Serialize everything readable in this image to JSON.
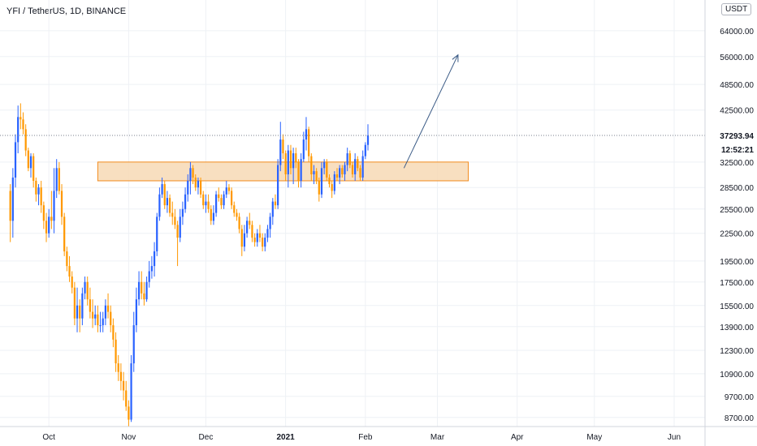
{
  "header": {
    "title": "YFI / TetherUS, 1D, BINANCE"
  },
  "price_scale": {
    "currency": "USDT"
  },
  "last_price": {
    "value": "37293.94",
    "countdown": "12:52:21"
  },
  "colors": {
    "up": "#2962ff",
    "down": "#ff9800",
    "zone_fill": "#f7d9b5",
    "zone_stroke": "#f28b1e",
    "arrow": "#3b5b86",
    "grid": "#eef1f5",
    "text": "#131722"
  },
  "chart_data": {
    "type": "candlestick",
    "title": "YFI / TetherUS, 1D, BINANCE",
    "y_scale": "log",
    "ylim": [
      8300,
      75000
    ],
    "y_ticks": [
      "8700.00",
      "9700.00",
      "10900.00",
      "12300.00",
      "13900.00",
      "15500.00",
      "17500.00",
      "19500.00",
      "22500.00",
      "25500.00",
      "28500.00",
      "32500.00",
      "42500.00",
      "48500.00",
      "56000.00",
      "64000.00"
    ],
    "x_ticks": [
      {
        "label": "Oct",
        "day": 15
      },
      {
        "label": "Nov",
        "day": 46
      },
      {
        "label": "Dec",
        "day": 76
      },
      {
        "label": "2021",
        "day": 107
      },
      {
        "label": "Feb",
        "day": 138
      },
      {
        "label": "Mar",
        "day": 166
      },
      {
        "label": "Apr",
        "day": 197
      },
      {
        "label": "May",
        "day": 227
      },
      {
        "label": "Jun",
        "day": 258
      }
    ],
    "x_range": [
      -4,
      270
    ],
    "candles": [
      [
        28000,
        21500,
        24000,
        29000
      ],
      [
        24000,
        22000,
        30000,
        31500
      ],
      [
        30000,
        28500,
        36000,
        37500
      ],
      [
        36000,
        34000,
        41000,
        43500
      ],
      [
        41000,
        38500,
        40500,
        44000
      ],
      [
        40500,
        37500,
        38500,
        42000
      ],
      [
        38500,
        33500,
        34500,
        39500
      ],
      [
        34500,
        31000,
        31500,
        35000
      ],
      [
        31500,
        30000,
        33500,
        34000
      ],
      [
        33500,
        28500,
        29500,
        34000
      ],
      [
        29500,
        26500,
        27500,
        30000
      ],
      [
        27500,
        26000,
        28500,
        29000
      ],
      [
        28500,
        25000,
        26000,
        29500
      ],
      [
        26000,
        23000,
        24000,
        26500
      ],
      [
        24000,
        21500,
        22500,
        25000
      ],
      [
        22500,
        22000,
        24500,
        25500
      ],
      [
        24500,
        23000,
        24000,
        28000
      ],
      [
        24000,
        22500,
        28000,
        31500
      ],
      [
        28000,
        27000,
        31500,
        33000
      ],
      [
        31500,
        27500,
        28000,
        32500
      ],
      [
        28000,
        23500,
        24500,
        29000
      ],
      [
        24500,
        20000,
        20500,
        25000
      ],
      [
        20500,
        18500,
        19000,
        21000
      ],
      [
        19000,
        17500,
        18000,
        20000
      ],
      [
        18000,
        16500,
        17000,
        18500
      ],
      [
        17000,
        14000,
        14500,
        17500
      ],
      [
        14500,
        13500,
        15500,
        17000
      ],
      [
        15500,
        13500,
        14500,
        16000
      ],
      [
        14500,
        14000,
        16500,
        17000
      ],
      [
        16500,
        16000,
        17500,
        18000
      ],
      [
        17500,
        15500,
        16000,
        18000
      ],
      [
        16000,
        14500,
        15000,
        17000
      ],
      [
        15000,
        13800,
        14500,
        16000
      ],
      [
        14500,
        14000,
        14800,
        15500
      ],
      [
        14800,
        13500,
        14000,
        15500
      ],
      [
        14000,
        13500,
        14000,
        15000
      ],
      [
        14000,
        13500,
        14500,
        15000
      ],
      [
        14500,
        14000,
        15500,
        16000
      ],
      [
        15500,
        14500,
        15000,
        16500
      ],
      [
        15000,
        13500,
        14000,
        15500
      ],
      [
        14000,
        12500,
        13000,
        14500
      ],
      [
        13000,
        11000,
        11500,
        13500
      ],
      [
        11500,
        10500,
        11000,
        12000
      ],
      [
        11000,
        10000,
        10500,
        11500
      ],
      [
        10500,
        9500,
        10000,
        11000
      ],
      [
        10000,
        9000,
        9200,
        10500
      ],
      [
        9200,
        8300,
        8600,
        9500
      ],
      [
        8600,
        8500,
        11500,
        12000
      ],
      [
        11500,
        11000,
        14000,
        15000
      ],
      [
        14000,
        13500,
        16000,
        17000
      ],
      [
        16000,
        15500,
        17500,
        18500
      ],
      [
        17500,
        16000,
        16500,
        18500
      ],
      [
        16500,
        15500,
        16000,
        17500
      ],
      [
        16000,
        15800,
        17500,
        18000
      ],
      [
        17500,
        17000,
        18500,
        19500
      ],
      [
        18500,
        17800,
        19000,
        20000
      ],
      [
        19000,
        18000,
        20500,
        21500
      ],
      [
        20500,
        20000,
        24500,
        25000
      ],
      [
        24500,
        24000,
        27500,
        28500
      ],
      [
        27500,
        27000,
        29000,
        30000
      ],
      [
        29000,
        25500,
        26000,
        29500
      ],
      [
        26000,
        25000,
        27000,
        28000
      ],
      [
        27000,
        24500,
        25000,
        27500
      ],
      [
        25000,
        23500,
        24500,
        26500
      ],
      [
        24500,
        23000,
        23500,
        25500
      ],
      [
        23500,
        19000,
        22000,
        24000
      ],
      [
        22000,
        21500,
        24500,
        25500
      ],
      [
        24500,
        23500,
        25500,
        26500
      ],
      [
        25500,
        25000,
        27500,
        28500
      ],
      [
        27500,
        26500,
        29500,
        30500
      ],
      [
        29500,
        27500,
        31500,
        32500
      ],
      [
        31500,
        29000,
        30000,
        32000
      ],
      [
        30000,
        28000,
        28500,
        30500
      ],
      [
        28500,
        27500,
        29500,
        30000
      ],
      [
        29500,
        27000,
        27500,
        30000
      ],
      [
        27500,
        25500,
        26000,
        28000
      ],
      [
        26000,
        25000,
        26500,
        27500
      ],
      [
        26500,
        25000,
        25500,
        27500
      ],
      [
        25500,
        23500,
        24000,
        26000
      ],
      [
        24000,
        23500,
        25000,
        26000
      ],
      [
        25000,
        24500,
        27500,
        28000
      ],
      [
        27500,
        26500,
        27000,
        28500
      ],
      [
        27000,
        25500,
        26000,
        27500
      ],
      [
        26000,
        25500,
        27500,
        28000
      ],
      [
        27500,
        27000,
        28500,
        29500
      ],
      [
        28500,
        27500,
        28000,
        29000
      ],
      [
        28000,
        25500,
        26000,
        28500
      ],
      [
        26000,
        24500,
        25000,
        26500
      ],
      [
        25000,
        24000,
        24500,
        25500
      ],
      [
        24500,
        22500,
        23000,
        25000
      ],
      [
        23000,
        20000,
        21000,
        23500
      ],
      [
        21000,
        20500,
        22500,
        23500
      ],
      [
        22500,
        22000,
        24000,
        24500
      ],
      [
        24000,
        23000,
        23500,
        25000
      ],
      [
        23500,
        21500,
        22000,
        24000
      ],
      [
        22000,
        21000,
        21500,
        22500
      ],
      [
        21500,
        21000,
        22500,
        23000
      ],
      [
        22500,
        21500,
        22000,
        23500
      ],
      [
        22000,
        20500,
        21000,
        22500
      ],
      [
        21000,
        20500,
        22000,
        22500
      ],
      [
        22000,
        21500,
        23000,
        23500
      ],
      [
        23000,
        22000,
        24500,
        25000
      ],
      [
        24500,
        23500,
        26500,
        27000
      ],
      [
        26500,
        25500,
        26000,
        27500
      ],
      [
        26000,
        25500,
        32000,
        33000
      ],
      [
        32000,
        31000,
        36500,
        40000
      ],
      [
        36500,
        33000,
        34000,
        37500
      ],
      [
        34000,
        29500,
        30500,
        34500
      ],
      [
        30500,
        28500,
        34500,
        35500
      ],
      [
        34500,
        30500,
        31500,
        35500
      ],
      [
        31500,
        29000,
        34000,
        35000
      ],
      [
        34000,
        31500,
        32500,
        35000
      ],
      [
        32500,
        28500,
        29500,
        33000
      ],
      [
        29500,
        28500,
        33000,
        34000
      ],
      [
        33000,
        32500,
        36500,
        38000
      ],
      [
        36500,
        34500,
        38500,
        41000
      ],
      [
        38500,
        32500,
        33500,
        39000
      ],
      [
        33500,
        29500,
        30500,
        34000
      ],
      [
        30500,
        29000,
        31000,
        32000
      ],
      [
        31000,
        29000,
        29500,
        31500
      ],
      [
        29500,
        26500,
        27500,
        30000
      ],
      [
        27500,
        27000,
        31500,
        32500
      ],
      [
        31500,
        30500,
        32500,
        33000
      ],
      [
        32500,
        29500,
        30000,
        33000
      ],
      [
        30000,
        28500,
        29000,
        30500
      ],
      [
        29000,
        27000,
        28000,
        29500
      ],
      [
        28000,
        27500,
        30500,
        31000
      ],
      [
        30500,
        29500,
        30000,
        31500
      ],
      [
        30000,
        29000,
        31500,
        32000
      ],
      [
        31500,
        30000,
        30500,
        32000
      ],
      [
        30500,
        29500,
        32000,
        32500
      ],
      [
        32000,
        31000,
        34000,
        35000
      ],
      [
        34000,
        31500,
        32000,
        34500
      ],
      [
        32000,
        30000,
        30500,
        32500
      ],
      [
        30500,
        29500,
        33000,
        34000
      ],
      [
        33000,
        31000,
        31500,
        33500
      ],
      [
        31500,
        29500,
        30000,
        32000
      ],
      [
        30000,
        29500,
        33500,
        34500
      ],
      [
        33500,
        33000,
        35500,
        36000
      ],
      [
        35500,
        34500,
        37293.94,
        39500
      ]
    ],
    "annotations": {
      "zone": {
        "from_day": 34,
        "to_day": 178,
        "low": 29500,
        "high": 32500
      },
      "arrow": {
        "from_day": 153,
        "from_price": 31500,
        "to_day": 174,
        "to_price": 56500
      }
    }
  }
}
